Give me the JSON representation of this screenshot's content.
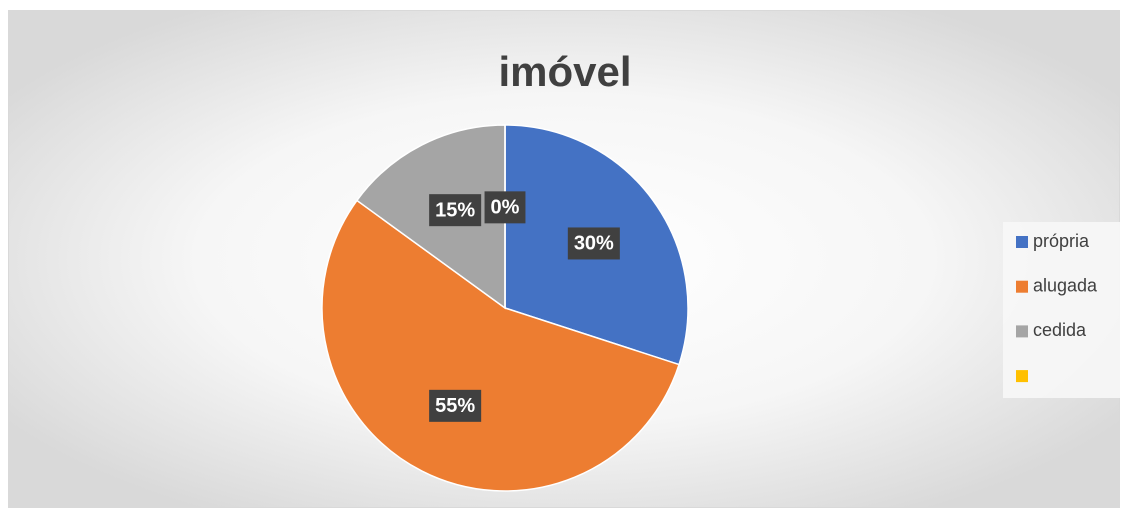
{
  "chart_data": {
    "type": "pie",
    "title": "imóvel",
    "categories": [
      "própria",
      "alugada",
      "cedida",
      null
    ],
    "values": [
      30,
      55,
      15,
      0
    ],
    "value_labels": [
      "30%",
      "55%",
      "15%",
      "0%"
    ],
    "colors": [
      "#4472c4",
      "#ed7d31",
      "#a5a5a5",
      "#ffc000"
    ],
    "legend": "right"
  }
}
